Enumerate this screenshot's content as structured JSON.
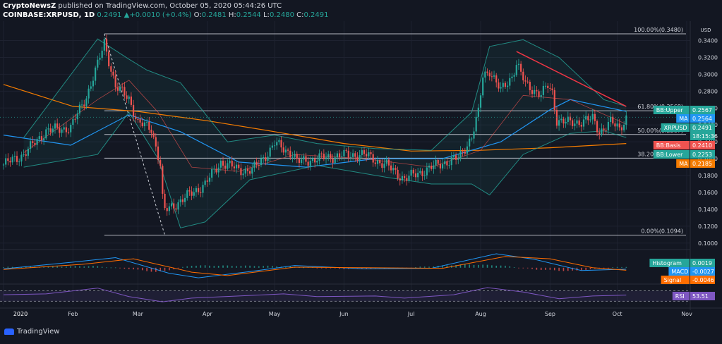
{
  "header": {
    "publisher": "CryptoNewsZ",
    "published_text": "published on TradingView.com, October 05, 2020 05:44:26 UTC",
    "symbol": "COINBASE:XRPUSD, 1D",
    "last": "0.2491",
    "change": "+0.0010 (+0.4%)",
    "o_label": "O:",
    "o": "0.2481",
    "h_label": "H:",
    "h": "0.2544",
    "l_label": "L:",
    "l": "0.2480",
    "c_label": "C:",
    "c": "0.2491",
    "up_arrow": "▲"
  },
  "footer": {
    "brand": "TradingView",
    "brand_icon": "tradingview-logo-icon"
  },
  "colors": {
    "background": "#131722",
    "up": "#26a69a",
    "down": "#ef5350",
    "bb_band": "#26a69a",
    "bb_basis": "#ef5350",
    "ma_long": "#f57c00",
    "ma_short": "#2196f3",
    "trendline": "#f23645",
    "fib": "#d1d4dc",
    "macd": "#2196f3",
    "signal": "#ff6d00",
    "rsi": "#7e57c2"
  },
  "chart_data": [
    {
      "type": "candlestick",
      "title": "",
      "xlabel": "",
      "ylabel": "USD",
      "ylim": [
        0.094,
        0.358
      ],
      "grid": true,
      "x_ticks": [
        "2020",
        "Feb",
        "Mar",
        "Apr",
        "May",
        "Jun",
        "Jul",
        "Aug",
        "Sep",
        "Oct",
        "Nov"
      ],
      "y_ticks": [
        "0.3400",
        "0.3200",
        "0.3000",
        "0.2800",
        "0.2600",
        "0.2400",
        "0.2200",
        "0.2000",
        "0.1800",
        "0.1600",
        "0.1400",
        "0.1200",
        "0.1000"
      ],
      "y_tick_values": [
        0.34,
        0.32,
        0.3,
        0.28,
        0.26,
        0.24,
        0.22,
        0.2,
        0.18,
        0.16,
        0.14,
        0.12,
        0.1
      ],
      "close_anchors": [
        [
          "2020-01-01",
          0.193
        ],
        [
          "2020-01-10",
          0.205
        ],
        [
          "2020-01-20",
          0.233
        ],
        [
          "2020-01-31",
          0.237
        ],
        [
          "2020-02-07",
          0.274
        ],
        [
          "2020-02-12",
          0.311
        ],
        [
          "2020-02-15",
          0.338
        ],
        [
          "2020-02-20",
          0.285
        ],
        [
          "2020-02-26",
          0.272
        ],
        [
          "2020-03-01",
          0.242
        ],
        [
          "2020-03-07",
          0.236
        ],
        [
          "2020-03-11",
          0.193
        ],
        [
          "2020-03-12",
          0.152
        ],
        [
          "2020-03-13",
          0.138
        ],
        [
          "2020-03-20",
          0.15
        ],
        [
          "2020-03-31",
          0.17
        ],
        [
          "2020-04-07",
          0.196
        ],
        [
          "2020-04-15",
          0.187
        ],
        [
          "2020-04-21",
          0.186
        ],
        [
          "2020-04-29",
          0.21
        ],
        [
          "2020-05-01",
          0.218
        ],
        [
          "2020-05-09",
          0.206
        ],
        [
          "2020-05-11",
          0.196
        ],
        [
          "2020-05-20",
          0.2
        ],
        [
          "2020-05-31",
          0.204
        ],
        [
          "2020-06-10",
          0.205
        ],
        [
          "2020-06-20",
          0.192
        ],
        [
          "2020-06-28",
          0.176
        ],
        [
          "2020-07-07",
          0.186
        ],
        [
          "2020-07-15",
          0.195
        ],
        [
          "2020-07-22",
          0.2
        ],
        [
          "2020-07-28",
          0.226
        ],
        [
          "2020-07-31",
          0.254
        ],
        [
          "2020-08-02",
          0.298
        ],
        [
          "2020-08-05",
          0.305
        ],
        [
          "2020-08-10",
          0.28
        ],
        [
          "2020-08-15",
          0.298
        ],
        [
          "2020-08-17",
          0.313
        ],
        [
          "2020-08-21",
          0.288
        ],
        [
          "2020-08-28",
          0.276
        ],
        [
          "2020-08-31",
          0.286
        ],
        [
          "2020-09-02",
          0.278
        ],
        [
          "2020-09-04",
          0.246
        ],
        [
          "2020-09-10",
          0.242
        ],
        [
          "2020-09-20",
          0.247
        ],
        [
          "2020-09-23",
          0.232
        ],
        [
          "2020-09-28",
          0.243
        ],
        [
          "2020-10-02",
          0.236
        ],
        [
          "2020-10-05",
          0.249
        ]
      ],
      "fib_levels": [
        {
          "label": "100.00%(0.3480)",
          "value": 0.348
        },
        {
          "label": "61.80%(0.2568)",
          "value": 0.2568
        },
        {
          "label": "50.00%(0.2287)",
          "value": 0.2287
        },
        {
          "label": "38.20%(0.2006)",
          "value": 0.2006
        },
        {
          "label": "0.00%(0.1094)",
          "value": 0.1094
        }
      ],
      "fib_start": "2020-02-15",
      "swing_line": {
        "from": [
          "2020-02-15",
          0.348
        ],
        "to": [
          "2020-03-13",
          0.1094
        ]
      },
      "trendline": {
        "from": [
          "2020-08-17",
          0.327
        ],
        "to": [
          "2020-10-05",
          0.262
        ]
      },
      "overlays": {
        "bb_upper": [
          [
            "2020-01-10",
            0.225
          ],
          [
            "2020-02-12",
            0.342
          ],
          [
            "2020-02-26",
            0.318
          ],
          [
            "2020-03-05",
            0.305
          ],
          [
            "2020-03-20",
            0.29
          ],
          [
            "2020-04-10",
            0.22
          ],
          [
            "2020-05-01",
            0.228
          ],
          [
            "2020-05-20",
            0.218
          ],
          [
            "2020-06-15",
            0.212
          ],
          [
            "2020-07-10",
            0.21
          ],
          [
            "2020-07-28",
            0.255
          ],
          [
            "2020-08-05",
            0.333
          ],
          [
            "2020-08-20",
            0.341
          ],
          [
            "2020-09-05",
            0.32
          ],
          [
            "2020-09-25",
            0.27
          ],
          [
            "2020-10-05",
            0.262
          ]
        ],
        "bb_lower": [
          [
            "2020-01-10",
            0.19
          ],
          [
            "2020-02-12",
            0.205
          ],
          [
            "2020-02-26",
            0.255
          ],
          [
            "2020-03-10",
            0.2
          ],
          [
            "2020-03-20",
            0.118
          ],
          [
            "2020-03-31",
            0.125
          ],
          [
            "2020-04-20",
            0.175
          ],
          [
            "2020-05-20",
            0.192
          ],
          [
            "2020-06-20",
            0.178
          ],
          [
            "2020-07-10",
            0.17
          ],
          [
            "2020-07-28",
            0.17
          ],
          [
            "2020-08-05",
            0.157
          ],
          [
            "2020-08-20",
            0.205
          ],
          [
            "2020-09-10",
            0.23
          ],
          [
            "2020-09-25",
            0.233
          ],
          [
            "2020-10-05",
            0.225
          ]
        ],
        "bb_basis": [
          [
            "2020-01-10",
            0.207
          ],
          [
            "2020-02-12",
            0.27
          ],
          [
            "2020-02-26",
            0.293
          ],
          [
            "2020-03-10",
            0.255
          ],
          [
            "2020-03-25",
            0.19
          ],
          [
            "2020-04-15",
            0.185
          ],
          [
            "2020-05-10",
            0.205
          ],
          [
            "2020-06-10",
            0.2
          ],
          [
            "2020-07-10",
            0.19
          ],
          [
            "2020-08-01",
            0.21
          ],
          [
            "2020-08-20",
            0.275
          ],
          [
            "2020-09-10",
            0.27
          ],
          [
            "2020-10-05",
            0.241
          ]
        ],
        "ma_long": [
          [
            "2020-01-01",
            0.288
          ],
          [
            "2020-02-01",
            0.262
          ],
          [
            "2020-03-01",
            0.256
          ],
          [
            "2020-04-01",
            0.245
          ],
          [
            "2020-05-01",
            0.232
          ],
          [
            "2020-06-01",
            0.218
          ],
          [
            "2020-07-01",
            0.209
          ],
          [
            "2020-08-01",
            0.21
          ],
          [
            "2020-09-01",
            0.213
          ],
          [
            "2020-10-05",
            0.218
          ]
        ],
        "ma_short": [
          [
            "2020-01-01",
            0.228
          ],
          [
            "2020-01-31",
            0.216
          ],
          [
            "2020-02-26",
            0.252
          ],
          [
            "2020-03-20",
            0.232
          ],
          [
            "2020-04-15",
            0.196
          ],
          [
            "2020-05-15",
            0.19
          ],
          [
            "2020-06-15",
            0.2
          ],
          [
            "2020-07-15",
            0.2
          ],
          [
            "2020-08-10",
            0.22
          ],
          [
            "2020-09-01",
            0.258
          ],
          [
            "2020-09-10",
            0.27
          ],
          [
            "2020-10-05",
            0.256
          ]
        ]
      },
      "price_labels": [
        {
          "text": "BB:Upper",
          "value": "0.2567",
          "color": "#26a69a",
          "y": 0.2567
        },
        {
          "text": "MA",
          "value": "0.2564",
          "color": "#2196f3",
          "y": 0.2564
        },
        {
          "text": "XRPUSD",
          "value": "0.2491",
          "color": "#26a69a",
          "y": 0.2491
        },
        {
          "text": "",
          "value": "18:15:36",
          "color": "#26a69a",
          "y": 0.2491
        },
        {
          "text": "BB:Basis",
          "value": "0.2410",
          "color": "#ef5350",
          "y": 0.241
        },
        {
          "text": "BB:Lower",
          "value": "0.2253",
          "color": "#26a69a",
          "y": 0.2253
        },
        {
          "text": "MA",
          "value": "0.2185",
          "color": "#f57c00",
          "y": 0.2185
        }
      ]
    },
    {
      "type": "histogram",
      "title": "",
      "ylim": [
        -0.028,
        0.03
      ],
      "series": [
        {
          "name": "Histogram",
          "values": [
            [
              "2020-01-01",
              0.001
            ],
            [
              "2020-02-10",
              0.003
            ],
            [
              "2020-02-26",
              -0.002
            ],
            [
              "2020-03-10",
              -0.008
            ],
            [
              "2020-03-25",
              0.004
            ],
            [
              "2020-05-01",
              0.003
            ],
            [
              "2020-06-01",
              -0.002
            ],
            [
              "2020-06-25",
              -0.001
            ],
            [
              "2020-07-25",
              0.006
            ],
            [
              "2020-08-10",
              0.004
            ],
            [
              "2020-08-25",
              -0.003
            ],
            [
              "2020-09-10",
              -0.006
            ],
            [
              "2020-09-28",
              0.0
            ],
            [
              "2020-10-05",
              0.0019
            ]
          ]
        },
        {
          "name": "MACD",
          "values": [
            [
              "2020-01-01",
              -0.002
            ],
            [
              "2020-02-01",
              0.01
            ],
            [
              "2020-02-20",
              0.018
            ],
            [
              "2020-03-15",
              -0.01
            ],
            [
              "2020-03-28",
              -0.018
            ],
            [
              "2020-04-20",
              -0.007
            ],
            [
              "2020-05-10",
              0.004
            ],
            [
              "2020-06-10",
              -0.002
            ],
            [
              "2020-07-10",
              -0.001
            ],
            [
              "2020-08-08",
              0.025
            ],
            [
              "2020-08-25",
              0.015
            ],
            [
              "2020-09-15",
              -0.005
            ],
            [
              "2020-10-05",
              -0.0027
            ]
          ]
        },
        {
          "name": "Signal",
          "values": [
            [
              "2020-01-01",
              -0.003
            ],
            [
              "2020-02-05",
              0.006
            ],
            [
              "2020-02-28",
              0.016
            ],
            [
              "2020-03-25",
              -0.008
            ],
            [
              "2020-04-10",
              -0.014
            ],
            [
              "2020-05-10",
              0.001
            ],
            [
              "2020-06-10",
              0.0
            ],
            [
              "2020-07-15",
              -0.001
            ],
            [
              "2020-08-12",
              0.02
            ],
            [
              "2020-09-01",
              0.016
            ],
            [
              "2020-09-20",
              0.0
            ],
            [
              "2020-10-05",
              -0.0046
            ]
          ]
        }
      ],
      "price_labels": [
        {
          "text": "Histogram",
          "value": "0.0019",
          "color": "#26a69a"
        },
        {
          "text": "MACD",
          "value": "-0.0027",
          "color": "#2196f3"
        },
        {
          "text": "Signal",
          "value": "-0.0046",
          "color": "#ff6d00"
        }
      ]
    },
    {
      "type": "line",
      "title": "",
      "ylim": [
        15,
        90
      ],
      "bands": [
        30,
        70
      ],
      "series": [
        {
          "name": "RSI",
          "values": [
            [
              "2020-01-01",
              55
            ],
            [
              "2020-01-20",
              58
            ],
            [
              "2020-02-12",
              80
            ],
            [
              "2020-02-26",
              48
            ],
            [
              "2020-03-12",
              28
            ],
            [
              "2020-03-25",
              42
            ],
            [
              "2020-04-15",
              50
            ],
            [
              "2020-05-05",
              58
            ],
            [
              "2020-05-20",
              48
            ],
            [
              "2020-06-15",
              50
            ],
            [
              "2020-06-28",
              42
            ],
            [
              "2020-07-20",
              55
            ],
            [
              "2020-08-04",
              82
            ],
            [
              "2020-08-20",
              65
            ],
            [
              "2020-09-05",
              40
            ],
            [
              "2020-09-20",
              50
            ],
            [
              "2020-10-05",
              53.51
            ]
          ]
        }
      ],
      "price_labels": [
        {
          "text": "RSI",
          "value": "53.51",
          "color": "#7e57c2"
        }
      ]
    }
  ]
}
